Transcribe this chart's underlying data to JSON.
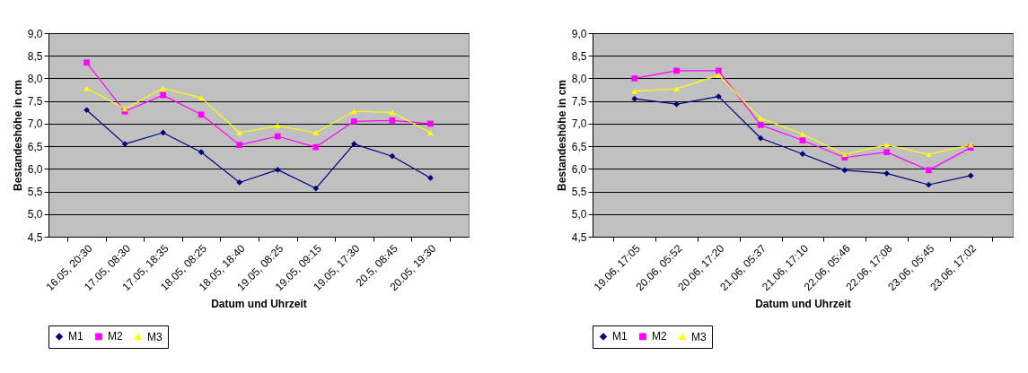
{
  "chart_data": [
    {
      "type": "line",
      "xlabel": "Datum und Uhrzeit",
      "ylabel": "Bestandeshöhe in cm",
      "categories": [
        "16.05, 20:30",
        "17.05, 08:30",
        "17.05, 18:35",
        "18.05, 08:25",
        "18.05, 18:40",
        "19.05, 08:25",
        "19.05, 09:15",
        "19.05, 17:30",
        "20.5, 08:45",
        "20.05, 19:30"
      ],
      "series": [
        {
          "name": "M1",
          "color": "#000080",
          "marker": "diamond",
          "values": [
            7.3,
            6.55,
            6.8,
            6.37,
            5.7,
            5.98,
            5.57,
            6.55,
            6.28,
            5.8
          ]
        },
        {
          "name": "M2",
          "color": "#ff00ff",
          "marker": "square",
          "values": [
            8.35,
            7.27,
            7.63,
            7.2,
            6.53,
            6.72,
            6.48,
            7.05,
            7.07,
            7.0
          ]
        },
        {
          "name": "M3",
          "color": "#ffff00",
          "marker": "triangle",
          "values": [
            7.78,
            7.33,
            7.78,
            7.57,
            6.8,
            6.95,
            6.8,
            7.27,
            7.25,
            6.8
          ]
        }
      ],
      "ylim": [
        4.5,
        9.0
      ],
      "yticks": [
        {
          "value": 4.5,
          "label": "4,5"
        },
        {
          "value": 5.0,
          "label": "5,0"
        },
        {
          "value": 5.5,
          "label": "5,5"
        },
        {
          "value": 6.0,
          "label": "6,0"
        },
        {
          "value": 6.5,
          "label": "6,5"
        },
        {
          "value": 7.0,
          "label": "7,0"
        },
        {
          "value": 7.5,
          "label": "7,5"
        },
        {
          "value": 8.0,
          "label": "8,0"
        },
        {
          "value": 8.5,
          "label": "8,5"
        },
        {
          "value": 9.0,
          "label": "9,0"
        }
      ],
      "grid": "y",
      "legend": "bottom"
    },
    {
      "type": "line",
      "xlabel": "Datum und Uhrzeit",
      "ylabel": "Bestandeshöhe in cm",
      "categories": [
        "19.06, 17:05",
        "20.06, 05:52",
        "20.06, 17:20",
        "21.06, 05:37",
        "21.06, 17:10",
        "22.06, 05:46",
        "22.06, 17:08",
        "23.06, 05:45",
        "23.06, 17:02"
      ],
      "series": [
        {
          "name": "M1",
          "color": "#000080",
          "marker": "diamond",
          "values": [
            7.55,
            7.43,
            7.6,
            6.68,
            6.33,
            5.97,
            5.9,
            5.65,
            5.85
          ]
        },
        {
          "name": "M2",
          "color": "#ff00ff",
          "marker": "square",
          "values": [
            8.0,
            8.17,
            8.17,
            6.97,
            6.63,
            6.25,
            6.37,
            5.97,
            6.47
          ]
        },
        {
          "name": "M3",
          "color": "#ffff00",
          "marker": "triangle",
          "values": [
            7.72,
            7.77,
            8.07,
            7.12,
            6.77,
            6.32,
            6.53,
            6.32,
            6.53
          ]
        }
      ],
      "ylim": [
        4.5,
        9.0
      ],
      "yticks": [
        {
          "value": 4.5,
          "label": "4,5"
        },
        {
          "value": 5.0,
          "label": "5,0"
        },
        {
          "value": 5.5,
          "label": "5,5"
        },
        {
          "value": 6.0,
          "label": "6,0"
        },
        {
          "value": 6.5,
          "label": "6,5"
        },
        {
          "value": 7.0,
          "label": "7,0"
        },
        {
          "value": 7.5,
          "label": "7,5"
        },
        {
          "value": 8.0,
          "label": "8,0"
        },
        {
          "value": 8.5,
          "label": "8,5"
        },
        {
          "value": 9.0,
          "label": "9,0"
        }
      ],
      "grid": "y",
      "legend": "bottom"
    }
  ]
}
